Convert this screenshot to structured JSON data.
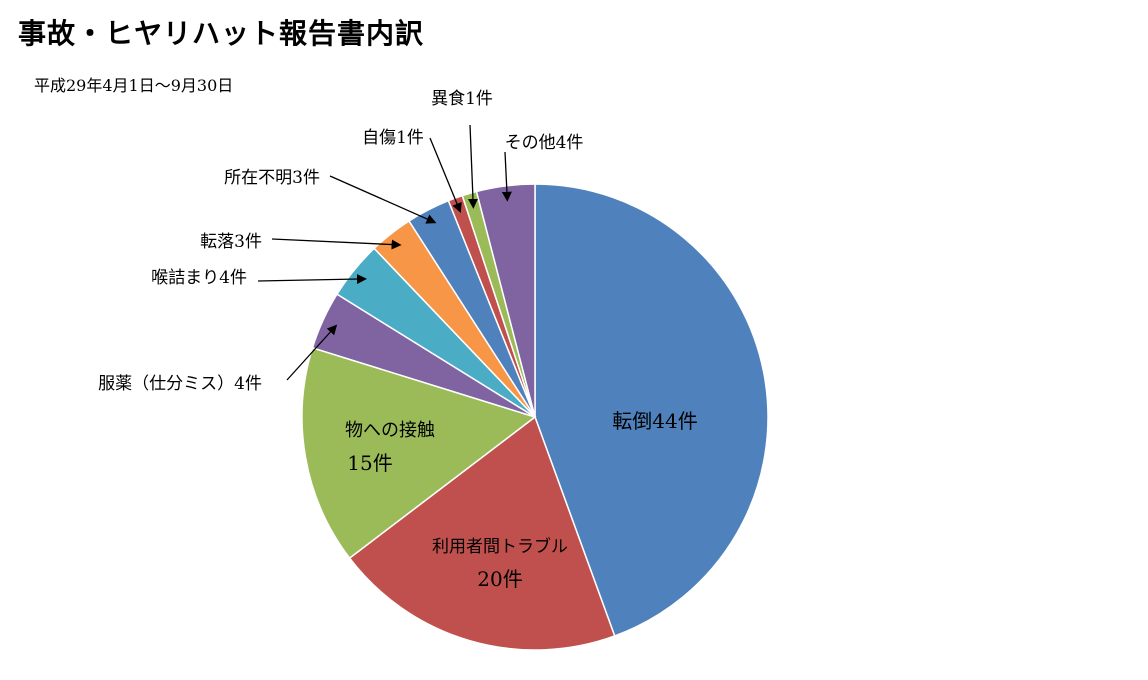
{
  "title": "事故・ヒヤリハット報告書内訳",
  "subtitle": "平成29年4月1日～9月30日",
  "chart_data": {
    "type": "pie",
    "title": "事故・ヒヤリハット報告書内訳",
    "subtitle": "平成29年4月1日～9月30日",
    "slices": [
      {
        "name": "転倒",
        "value": 44,
        "label": "転倒44件",
        "color": "#4F81BD"
      },
      {
        "name": "利用者間トラブル",
        "value": 20,
        "label": "利用者間トラブル 20件",
        "color": "#C0504D"
      },
      {
        "name": "物への接触",
        "value": 15,
        "label": "物への接触 15件",
        "color": "#9BBB59"
      },
      {
        "name": "服薬（仕分ミス）",
        "value": 4,
        "label": "服薬（仕分ミス）4件",
        "color": "#8064A2"
      },
      {
        "name": "喉詰まり",
        "value": 4,
        "label": "喉詰まり4件",
        "color": "#4BACC6"
      },
      {
        "name": "転落",
        "value": 3,
        "label": "転落3件",
        "color": "#F79646"
      },
      {
        "name": "所在不明",
        "value": 3,
        "label": "所在不明3件",
        "color": "#4F81BD"
      },
      {
        "name": "自傷",
        "value": 1,
        "label": "自傷1件",
        "color": "#C0504D"
      },
      {
        "name": "異食",
        "value": 1,
        "label": "異食1件",
        "color": "#9BBB59"
      },
      {
        "name": "その他",
        "value": 4,
        "label": "その他4件",
        "color": "#8064A2"
      }
    ],
    "start": "12 o'clock",
    "direction": "clockwise",
    "legend": "none"
  }
}
